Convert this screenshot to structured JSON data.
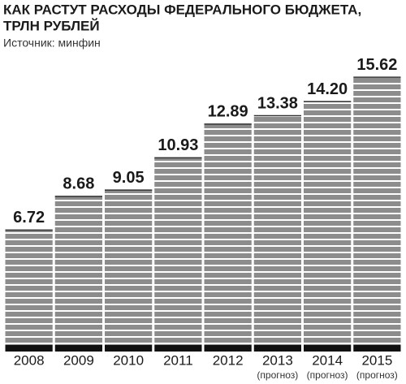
{
  "chart_data": {
    "type": "bar",
    "title": [
      "КАК РАСТУТ РАСХОДЫ ФЕДЕРАЛЬНОГО БЮДЖЕТА,",
      "ТРЛН РУБЛЕЙ"
    ],
    "subtitle": "Источник: минфин",
    "categories": [
      "2008",
      "2009",
      "2010",
      "2011",
      "2012",
      "2013",
      "2014",
      "2015"
    ],
    "category_notes": [
      null,
      null,
      null,
      null,
      null,
      "(прогноз)",
      "(прогноз)",
      "(прогноз)"
    ],
    "values": [
      6.72,
      8.68,
      9.05,
      10.93,
      12.89,
      13.38,
      14.2,
      15.62
    ],
    "value_labels": [
      "6.72",
      "8.68",
      "9.05",
      "10.93",
      "12.89",
      "13.38",
      "14.20",
      "15.62"
    ],
    "color": "#8c8c8c",
    "ylim": [
      0,
      20
    ]
  }
}
